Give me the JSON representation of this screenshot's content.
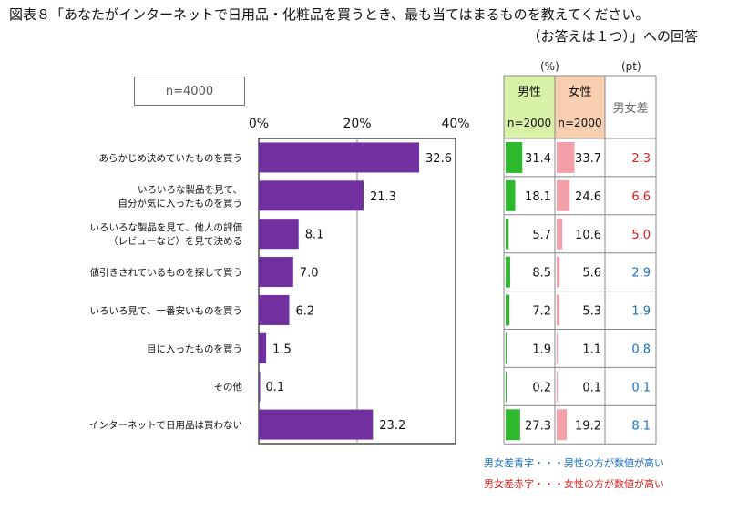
{
  "title_line1": "図表８「あなたがインターネットで日用品・化粧品を買うとき、最も当てはまるものを教えてください。",
  "title_line2": "（お答えは１つ）」への回答",
  "n_label": "n=4000",
  "unit_percent": "(%)",
  "unit_pt": "(pt)",
  "table_header": {
    "male": "男性",
    "female": "女性",
    "n_male": "n=2000",
    "n_female": "n=2000",
    "diff": "男女差"
  },
  "legend": {
    "blue_note": "男女差青字・・・男性の方が数値が高い",
    "red_note": "男女差赤字・・・女性の方が数値が高い"
  },
  "colors": {
    "bar": "#7030a0",
    "male_header": "#d8f2a8",
    "female_header": "#f8cfb0",
    "male_bar": "#2eb82e",
    "female_bar": "#f4a0a8",
    "diff_blue": "#1a6fc4",
    "diff_red": "#e02020"
  },
  "chart_data": {
    "type": "bar",
    "orientation": "horizontal",
    "xlim": [
      0,
      40
    ],
    "x_ticks": [
      "0%",
      "20%",
      "40%"
    ],
    "categories": [
      [
        "あらかじめ決めていたものを買う"
      ],
      [
        "いろいろな製品を見て、",
        "自分が気に入ったものを買う"
      ],
      [
        "いろいろな製品を見て、他人の評価",
        "（レビューなど）を見て決める"
      ],
      [
        "値引きされているものを探して買う"
      ],
      [
        "いろいろ見て、一番安いものを買う"
      ],
      [
        "目に入ったものを買う"
      ],
      [
        "その他"
      ],
      [
        "インターネットで日用品は買わない"
      ]
    ],
    "values": [
      32.6,
      21.3,
      8.1,
      7.0,
      6.2,
      1.5,
      0.1,
      23.2
    ],
    "value_labels": [
      "32.6",
      "21.3",
      "8.1",
      "7.0",
      "6.2",
      "1.5",
      "0.1",
      "23.2"
    ],
    "series": [
      {
        "name": "男性",
        "values": [
          31.4,
          18.1,
          5.7,
          8.5,
          7.2,
          1.9,
          0.2,
          27.3
        ],
        "labels": [
          "31.4",
          "18.1",
          "5.7",
          "8.5",
          "7.2",
          "1.9",
          "0.2",
          "27.3"
        ]
      },
      {
        "name": "女性",
        "values": [
          33.7,
          24.6,
          10.6,
          5.6,
          5.3,
          1.1,
          0.1,
          19.2
        ],
        "labels": [
          "33.7",
          "24.6",
          "10.6",
          "5.6",
          "5.3",
          "1.1",
          "0.1",
          "19.2"
        ]
      }
    ],
    "diff_labels": [
      "2.3",
      "6.6",
      "5.0",
      "2.9",
      "1.9",
      "0.8",
      "0.1",
      "8.1"
    ],
    "diff_higher": [
      "female",
      "female",
      "female",
      "male",
      "male",
      "male",
      "male",
      "male"
    ]
  }
}
